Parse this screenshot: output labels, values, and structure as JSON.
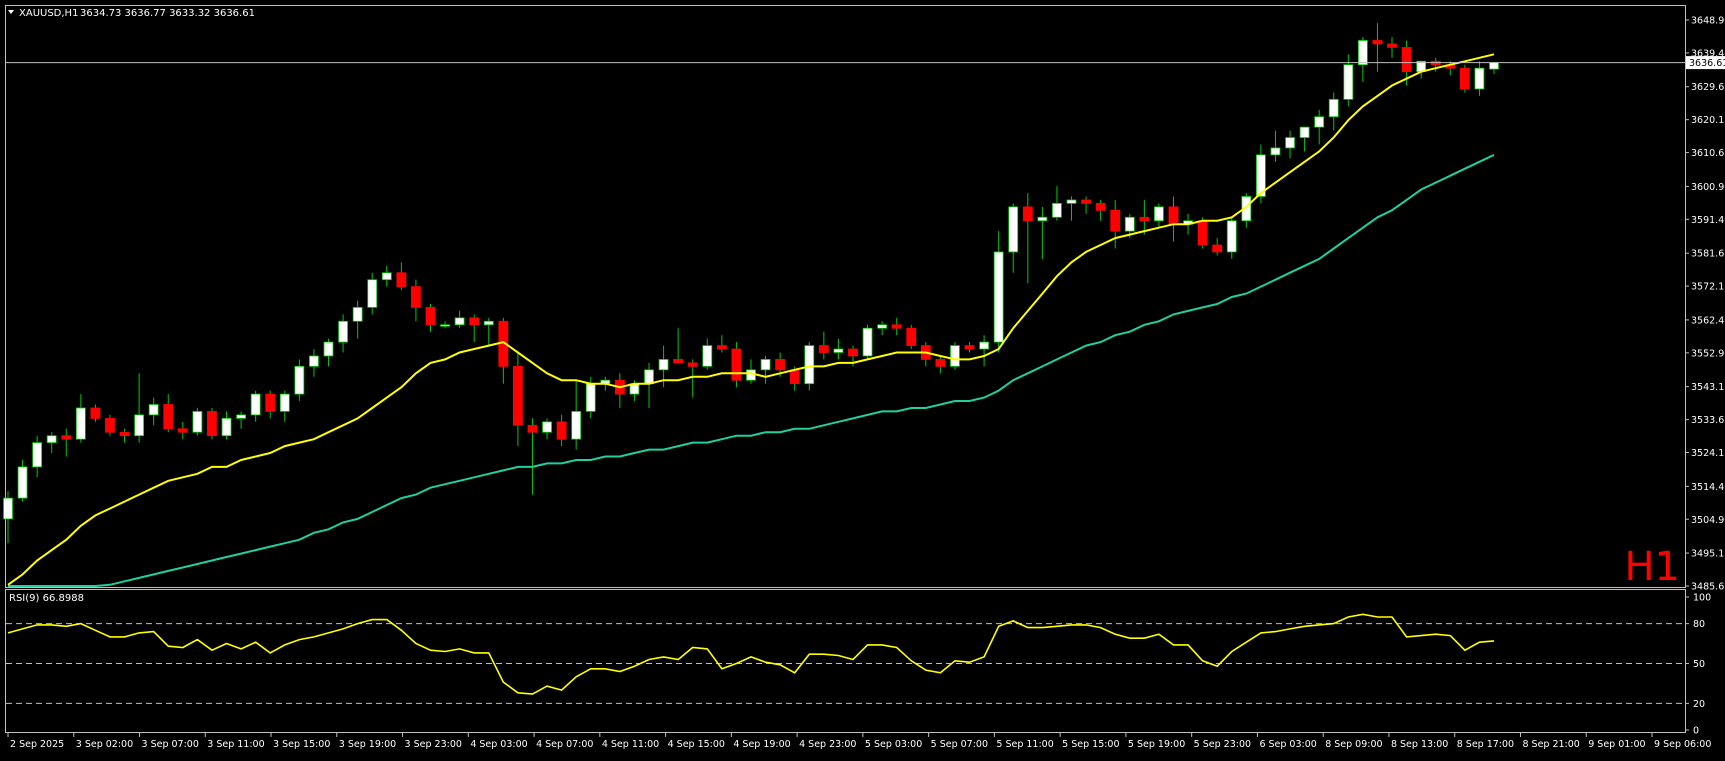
{
  "header": {
    "symbol": "XAUUSD,H1",
    "ohlc": "3634.73 3636.77 3633.32 3636.61"
  },
  "timeframe_label": "H1",
  "rsi_header": "RSI(9) 66.8988",
  "colors": {
    "background": "#000000",
    "grid_frame": "#c0c0c0",
    "bull_candle": "#ffffff",
    "bear_candle": "#ff0000",
    "wick": "#00cc00",
    "ma_fast": "#ffff00",
    "ma_slow": "#20d0a0",
    "rsi_line": "#ffff00",
    "price_line": "#c0c0c0",
    "timeframe_label": "#ff0000"
  },
  "chart_data": [
    {
      "type": "candlestick",
      "symbol": "XAUUSD",
      "timeframe": "H1",
      "current_price": 3636.61,
      "ylim": [
        3485.65,
        3648.9
      ],
      "y_ticks": [
        "3648.90",
        "3639.40",
        "3629.65",
        "3620.15",
        "3610.65",
        "3600.90",
        "3591.40",
        "3581.65",
        "3572.15",
        "3562.40",
        "3552.90",
        "3543.15",
        "3533.65",
        "3524.15",
        "3514.40",
        "3504.90",
        "3495.15",
        "3485.65"
      ],
      "x_ticks": [
        "2 Sep 2025",
        "3 Sep 02:00",
        "3 Sep 07:00",
        "3 Sep 11:00",
        "3 Sep 15:00",
        "3 Sep 19:00",
        "3 Sep 23:00",
        "4 Sep 03:00",
        "4 Sep 07:00",
        "4 Sep 11:00",
        "4 Sep 15:00",
        "4 Sep 19:00",
        "4 Sep 23:00",
        "5 Sep 03:00",
        "5 Sep 07:00",
        "5 Sep 11:00",
        "5 Sep 15:00",
        "5 Sep 19:00",
        "5 Sep 23:00",
        "6 Sep 03:00",
        "8 Sep 09:00",
        "8 Sep 13:00",
        "8 Sep 17:00",
        "8 Sep 21:00",
        "9 Sep 01:00",
        "9 Sep 06:00"
      ],
      "candles_ohlc": [
        [
          3505,
          3513,
          3498,
          3511
        ],
        [
          3511,
          3522,
          3510,
          3520
        ],
        [
          3520,
          3529,
          3517,
          3527
        ],
        [
          3527,
          3530,
          3524,
          3529
        ],
        [
          3529,
          3531,
          3523,
          3528
        ],
        [
          3528,
          3541,
          3527,
          3537
        ],
        [
          3537,
          3538,
          3533,
          3534
        ],
        [
          3534,
          3535,
          3529,
          3530
        ],
        [
          3530,
          3531,
          3527,
          3529
        ],
        [
          3529,
          3547,
          3527,
          3535
        ],
        [
          3535,
          3540,
          3532,
          3538
        ],
        [
          3538,
          3541,
          3530,
          3531
        ],
        [
          3531,
          3533,
          3528,
          3530
        ],
        [
          3530,
          3537,
          3529,
          3536
        ],
        [
          3536,
          3537,
          3528,
          3529
        ],
        [
          3529,
          3536,
          3528,
          3534
        ],
        [
          3534,
          3536,
          3531,
          3535
        ],
        [
          3535,
          3542,
          3533,
          3541
        ],
        [
          3541,
          3542,
          3534,
          3536
        ],
        [
          3536,
          3542,
          3533,
          3541
        ],
        [
          3541,
          3551,
          3539,
          3549
        ],
        [
          3549,
          3554,
          3546,
          3552
        ],
        [
          3552,
          3557,
          3549,
          3556
        ],
        [
          3556,
          3564,
          3553,
          3562
        ],
        [
          3562,
          3568,
          3557,
          3566
        ],
        [
          3566,
          3576,
          3564,
          3574
        ],
        [
          3574,
          3578,
          3572,
          3576
        ],
        [
          3576,
          3579,
          3571,
          3572
        ],
        [
          3572,
          3574,
          3562,
          3566
        ],
        [
          3566,
          3567,
          3559,
          3561
        ],
        [
          3561,
          3562,
          3560,
          3561
        ],
        [
          3561,
          3565,
          3560,
          3563
        ],
        [
          3563,
          3564,
          3556,
          3561
        ],
        [
          3561,
          3563,
          3555,
          3562
        ],
        [
          3562,
          3563,
          3544,
          3549
        ],
        [
          3549,
          3553,
          3526,
          3532
        ],
        [
          3532,
          3534,
          3512,
          3530
        ],
        [
          3530,
          3534,
          3528,
          3533
        ],
        [
          3533,
          3535,
          3526,
          3528
        ],
        [
          3528,
          3545,
          3525,
          3536
        ],
        [
          3536,
          3546,
          3534,
          3544
        ],
        [
          3544,
          3546,
          3542,
          3545
        ],
        [
          3545,
          3547,
          3537,
          3541
        ],
        [
          3541,
          3545,
          3539,
          3544
        ],
        [
          3544,
          3550,
          3537,
          3548
        ],
        [
          3548,
          3555,
          3543,
          3551
        ],
        [
          3551,
          3560,
          3550,
          3550
        ],
        [
          3550,
          3551,
          3540,
          3549
        ],
        [
          3549,
          3557,
          3548,
          3555
        ],
        [
          3555,
          3558,
          3553,
          3554
        ],
        [
          3554,
          3556,
          3543,
          3545
        ],
        [
          3545,
          3551,
          3544,
          3548
        ],
        [
          3548,
          3552,
          3544,
          3551
        ],
        [
          3551,
          3553,
          3546,
          3548
        ],
        [
          3548,
          3549,
          3542,
          3544
        ],
        [
          3544,
          3556,
          3542,
          3555
        ],
        [
          3555,
          3559,
          3551,
          3553
        ],
        [
          3553,
          3557,
          3551,
          3554
        ],
        [
          3554,
          3555,
          3549,
          3552
        ],
        [
          3552,
          3561,
          3551,
          3560
        ],
        [
          3560,
          3562,
          3558,
          3561
        ],
        [
          3561,
          3563,
          3558,
          3560
        ],
        [
          3560,
          3561,
          3554,
          3555
        ],
        [
          3555,
          3556,
          3549,
          3551
        ],
        [
          3551,
          3552,
          3547,
          3549
        ],
        [
          3549,
          3556,
          3548,
          3555
        ],
        [
          3555,
          3556,
          3553,
          3554
        ],
        [
          3554,
          3558,
          3549,
          3556
        ],
        [
          3556,
          3588,
          3553,
          3582
        ],
        [
          3582,
          3596,
          3576,
          3595
        ],
        [
          3595,
          3599,
          3573,
          3591
        ],
        [
          3591,
          3595,
          3580,
          3592
        ],
        [
          3592,
          3601,
          3591,
          3596
        ],
        [
          3596,
          3598,
          3591,
          3597
        ],
        [
          3597,
          3598,
          3593,
          3596
        ],
        [
          3596,
          3597,
          3591,
          3594
        ],
        [
          3594,
          3597,
          3583,
          3588
        ],
        [
          3588,
          3593,
          3586,
          3592
        ],
        [
          3592,
          3597,
          3587,
          3591
        ],
        [
          3591,
          3596,
          3589,
          3595
        ],
        [
          3595,
          3598,
          3585,
          3590
        ],
        [
          3590,
          3593,
          3587,
          3591
        ],
        [
          3591,
          3592,
          3583,
          3584
        ],
        [
          3584,
          3586,
          3581,
          3582
        ],
        [
          3582,
          3592,
          3580,
          3591
        ],
        [
          3591,
          3599,
          3589,
          3598
        ],
        [
          3598,
          3613,
          3596,
          3610
        ],
        [
          3610,
          3617,
          3608,
          3612
        ],
        [
          3612,
          3617,
          3609,
          3615
        ],
        [
          3615,
          3618,
          3611,
          3618
        ],
        [
          3618,
          3623,
          3613,
          3621
        ],
        [
          3621,
          3628,
          3617,
          3626
        ],
        [
          3626,
          3639,
          3624,
          3636
        ],
        [
          3636,
          3644,
          3631,
          3643
        ],
        [
          3643,
          3648,
          3634,
          3642
        ],
        [
          3642,
          3644,
          3638,
          3641
        ],
        [
          3641,
          3643,
          3630,
          3634
        ],
        [
          3634,
          3637,
          3632,
          3637
        ],
        [
          3637,
          3638,
          3634,
          3636
        ],
        [
          3636,
          3637,
          3633,
          3635
        ],
        [
          3635,
          3636,
          3628,
          3629
        ],
        [
          3629,
          3637,
          3627,
          3635
        ],
        [
          3634.73,
          3636.77,
          3633.32,
          3636.61
        ]
      ],
      "ma_fast": [
        3486,
        3489,
        3493,
        3496,
        3499,
        3503,
        3506,
        3508,
        3510,
        3512,
        3514,
        3516,
        3517,
        3518,
        3520,
        3520,
        3522,
        3523,
        3524,
        3526,
        3527,
        3528,
        3530,
        3532,
        3534,
        3537,
        3540,
        3543,
        3547,
        3550,
        3551,
        3553,
        3554,
        3555,
        3556,
        3553,
        3550,
        3547,
        3545,
        3545,
        3544,
        3544,
        3543,
        3544,
        3544,
        3545,
        3545,
        3546,
        3546,
        3547,
        3547,
        3547,
        3546,
        3547,
        3548,
        3549,
        3549,
        3550,
        3550,
        3551,
        3552,
        3553,
        3553,
        3553,
        3552,
        3551,
        3551,
        3552,
        3554,
        3560,
        3565,
        3570,
        3575,
        3579,
        3582,
        3584,
        3586,
        3587,
        3588,
        3589,
        3590,
        3590,
        3591,
        3591,
        3592,
        3595,
        3599,
        3602,
        3605,
        3608,
        3611,
        3615,
        3620,
        3624,
        3627,
        3630,
        3632,
        3634,
        3635,
        3636,
        3637,
        3638,
        3639
      ],
      "ma_slow": [
        3478,
        3479,
        3480,
        3481,
        3482,
        3484,
        3485,
        3486,
        3487,
        3488,
        3489,
        3490,
        3491,
        3492,
        3493,
        3494,
        3495,
        3496,
        3497,
        3498,
        3499,
        3501,
        3502,
        3504,
        3505,
        3507,
        3509,
        3511,
        3512,
        3514,
        3515,
        3516,
        3517,
        3518,
        3519,
        3520,
        3520,
        3521,
        3521,
        3522,
        3522,
        3523,
        3523,
        3524,
        3525,
        3525,
        3526,
        3527,
        3527,
        3528,
        3529,
        3529,
        3530,
        3530,
        3531,
        3531,
        3532,
        3533,
        3534,
        3535,
        3536,
        3536,
        3537,
        3537,
        3538,
        3539,
        3539,
        3540,
        3542,
        3545,
        3547,
        3549,
        3551,
        3553,
        3555,
        3556,
        3558,
        3559,
        3561,
        3562,
        3564,
        3565,
        3566,
        3567,
        3569,
        3570,
        3572,
        3574,
        3576,
        3578,
        3580,
        3583,
        3586,
        3589,
        3592,
        3594,
        3597,
        3600,
        3602,
        3604,
        3606,
        3608,
        3610
      ]
    },
    {
      "type": "line",
      "name": "RSI(9)",
      "current_value": 66.8988,
      "ylim": [
        0,
        100
      ],
      "y_ticks": [
        0,
        20,
        50,
        80,
        100
      ],
      "levels": [
        20,
        50,
        80
      ],
      "values": [
        73,
        76,
        79,
        79,
        78,
        80,
        75,
        70,
        70,
        73,
        74,
        63,
        62,
        68,
        60,
        65,
        61,
        66,
        58,
        64,
        68,
        70,
        73,
        76,
        80,
        83,
        83,
        75,
        65,
        60,
        59,
        61,
        58,
        58,
        36,
        28,
        27,
        33,
        30,
        40,
        46,
        46,
        44,
        48,
        53,
        55,
        53,
        62,
        61,
        46,
        50,
        55,
        51,
        49,
        43,
        57,
        57,
        56,
        53,
        64,
        64,
        62,
        52,
        45,
        43,
        52,
        51,
        55,
        78,
        82,
        77,
        77,
        78,
        79,
        79,
        77,
        72,
        69,
        69,
        72,
        64,
        64,
        52,
        48,
        59,
        66,
        73,
        74,
        76,
        78,
        79,
        80,
        85,
        87,
        85,
        85,
        70,
        71,
        72,
        71,
        60,
        66,
        67
      ]
    }
  ]
}
